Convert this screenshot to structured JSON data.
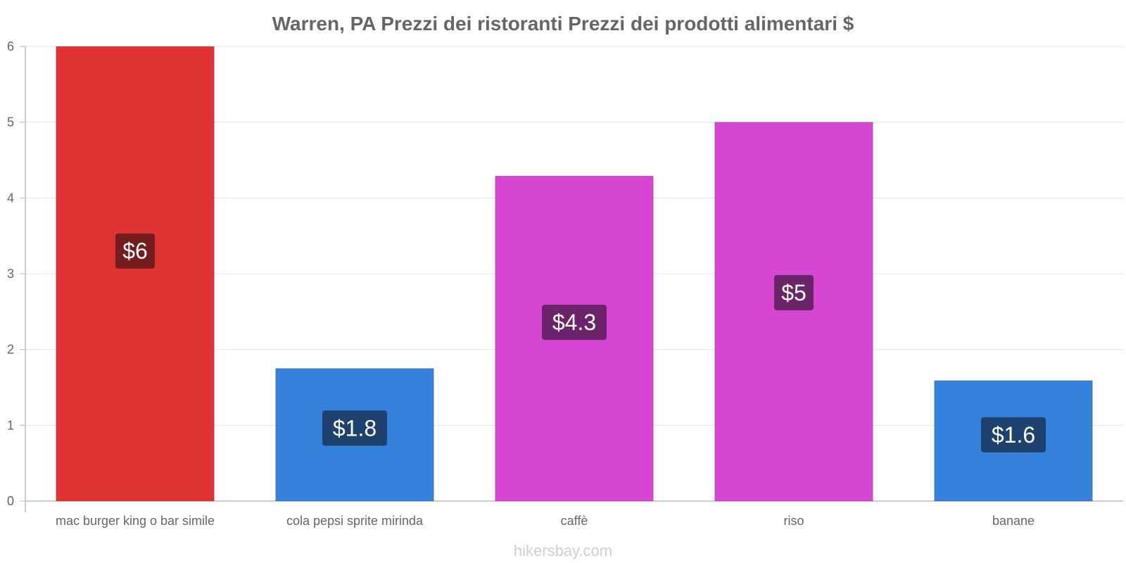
{
  "chart_data": {
    "type": "bar",
    "title": "Warren, PA Prezzi dei ristoranti Prezzi dei prodotti alimentari $",
    "categories": [
      "mac burger king o bar simile",
      "cola pepsi sprite mirinda",
      "caffè",
      "riso",
      "banane"
    ],
    "values": [
      6,
      1.75,
      4.29,
      5,
      1.59
    ],
    "value_labels": [
      "$6",
      "$1.8",
      "$4.3",
      "$5",
      "$1.6"
    ],
    "bar_colors": [
      "#e03434",
      "#3681dc",
      "#d547d3",
      "#d547d3",
      "#3681dc"
    ],
    "label_bg_colors": [
      "#751c1c",
      "#1e4270",
      "#6b246a",
      "#6b246a",
      "#1e4270"
    ],
    "ylim": [
      0,
      6
    ],
    "yticks": [
      "0",
      "1",
      "2",
      "3",
      "4",
      "5",
      "6"
    ],
    "xlabel": "",
    "ylabel": "",
    "grid": true
  },
  "watermark": "hikersbay.com"
}
